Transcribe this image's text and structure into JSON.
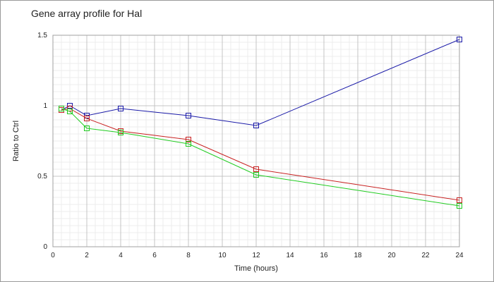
{
  "chart_data": {
    "type": "line",
    "title": "Gene array profile for Hal",
    "xlabel": "Time (hours)",
    "ylabel": "Ratio to Ctrl",
    "xlim": [
      0,
      24
    ],
    "ylim": [
      0,
      1.5
    ],
    "xticks": [
      "0",
      "2",
      "4",
      "6",
      "8",
      "10",
      "12",
      "14",
      "16",
      "18",
      "20",
      "22",
      "24"
    ],
    "yticks": [
      "0",
      "0.5",
      "1",
      "1.5"
    ],
    "grid": true,
    "legend": "none",
    "series": [
      {
        "color": "#1a1aa8",
        "x": [
          0.5,
          1,
          2,
          4,
          8,
          12,
          24
        ],
        "y": [
          0.97,
          1.0,
          0.93,
          0.98,
          0.93,
          0.86,
          1.47
        ]
      },
      {
        "color": "#c82020",
        "x": [
          0.5,
          1,
          2,
          4,
          8,
          12,
          24
        ],
        "y": [
          0.97,
          0.98,
          0.91,
          0.82,
          0.76,
          0.55,
          0.33
        ]
      },
      {
        "color": "#20cc20",
        "x": [
          0.5,
          1,
          2,
          4,
          8,
          12,
          24
        ],
        "y": [
          0.98,
          0.96,
          0.84,
          0.81,
          0.73,
          0.51,
          0.29
        ]
      }
    ]
  }
}
